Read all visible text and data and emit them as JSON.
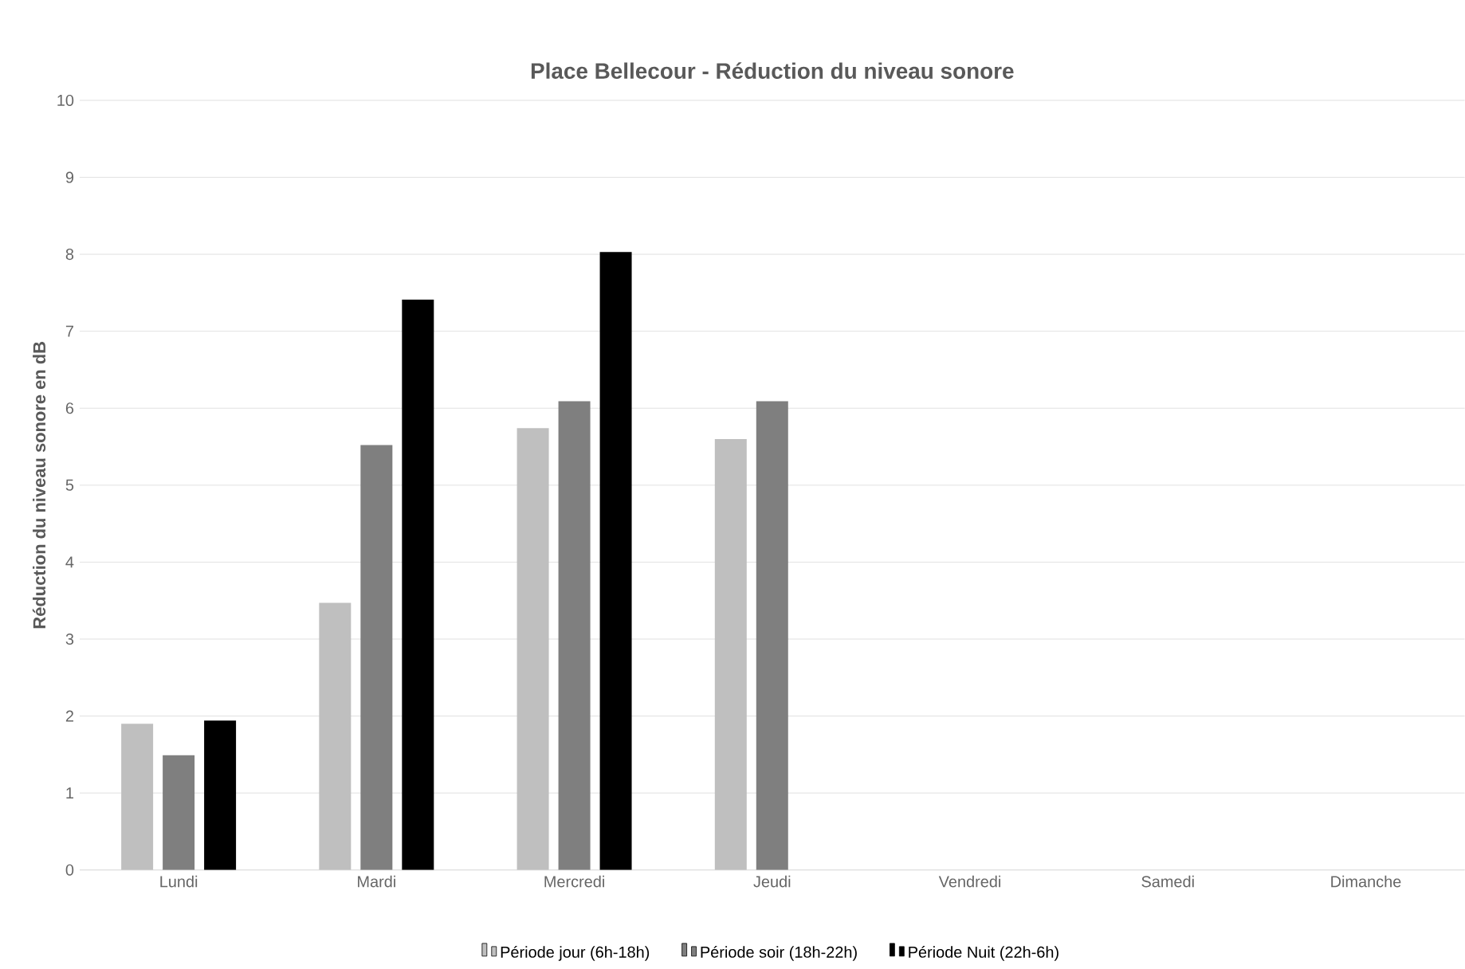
{
  "chart_data": {
    "type": "bar",
    "title": "Place Bellecour - Réduction du niveau sonore",
    "ylabel": "Réduction du niveau sonore en dB",
    "categories": [
      "Lundi",
      "Mardi",
      "Mercredi",
      "Jeudi",
      "Vendredi",
      "Samedi",
      "Dimanche"
    ],
    "series": [
      {
        "name": "Période jour (6h-18h)",
        "color": "#bfbfbf",
        "values": [
          1.9,
          3.47,
          5.74,
          5.6,
          null,
          null,
          null
        ]
      },
      {
        "name": "Période soir (18h-22h)",
        "color": "#7f7f7f",
        "values": [
          1.49,
          5.52,
          6.09,
          6.09,
          null,
          null,
          null
        ]
      },
      {
        "name": "Période Nuit (22h-6h)",
        "color": "#000000",
        "values": [
          1.94,
          7.41,
          8.03,
          null,
          null,
          null,
          null
        ]
      }
    ],
    "ylim": [
      0,
      10
    ],
    "yticks": [
      0,
      1,
      2,
      3,
      4,
      5,
      6,
      7,
      8,
      9,
      10
    ],
    "grid": "y",
    "legend": "bottom"
  }
}
